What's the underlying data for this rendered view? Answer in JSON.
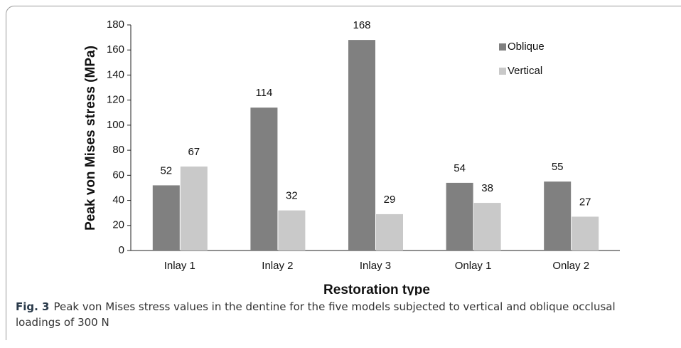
{
  "chart_data": {
    "type": "bar",
    "categories": [
      "Inlay 1",
      "Inlay 2",
      "Inlay 3",
      "Onlay 1",
      "Onlay 2"
    ],
    "series": [
      {
        "name": "Oblique",
        "color": "#808080",
        "values": [
          52,
          114,
          168,
          54,
          55
        ]
      },
      {
        "name": "Vertical",
        "color": "#c9c9c9",
        "values": [
          67,
          32,
          29,
          38,
          27
        ]
      }
    ],
    "ylim": [
      0,
      180
    ],
    "yticks": [
      0,
      20,
      40,
      60,
      80,
      100,
      120,
      140,
      160,
      180
    ],
    "y_label": "Peak von Mises stress (MPa)",
    "x_label": "Restoration type",
    "grid": false,
    "legend": "top-right"
  },
  "caption": {
    "label": "Fig. 3",
    "text": "Peak von Mises stress values in the dentine for the five models subjected to vertical and oblique occlusal loadings of 300 N"
  }
}
